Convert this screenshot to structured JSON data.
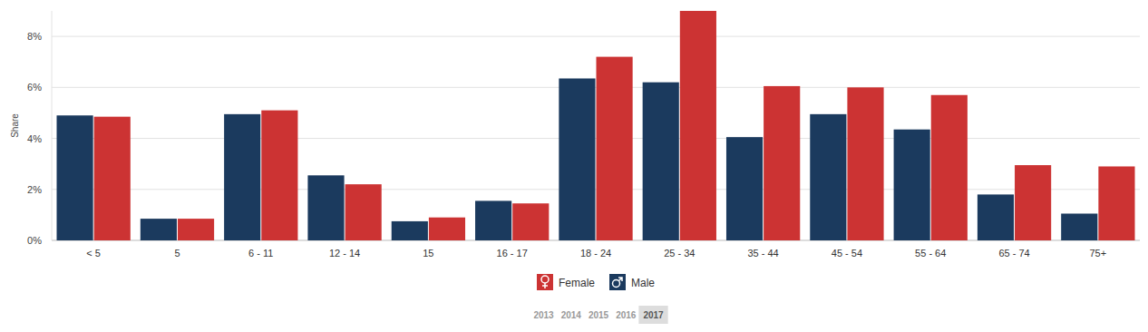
{
  "chart_data": {
    "type": "bar",
    "y_label": "Share",
    "categories": [
      "< 5",
      "5",
      "6 - 11",
      "12 - 14",
      "15",
      "16 - 17",
      "18 - 24",
      "25 - 34",
      "35 - 44",
      "45 - 54",
      "55 - 64",
      "65 - 74",
      "75+"
    ],
    "series": [
      {
        "name": "Male",
        "color": "#1b3a5e",
        "values": [
          4.9,
          0.85,
          4.95,
          2.55,
          0.75,
          1.55,
          6.35,
          6.2,
          4.05,
          4.95,
          4.35,
          1.8,
          1.05
        ]
      },
      {
        "name": "Female",
        "color": "#cc3333",
        "values": [
          4.85,
          0.85,
          5.1,
          2.2,
          0.9,
          1.45,
          7.2,
          9.0,
          6.05,
          6.0,
          5.7,
          2.95,
          2.9
        ]
      }
    ],
    "ylim": [
      0,
      9
    ],
    "yticks": [
      {
        "value": 0,
        "label": "0%"
      },
      {
        "value": 2,
        "label": "2%"
      },
      {
        "value": 4,
        "label": "4%"
      },
      {
        "value": 6,
        "label": "6%"
      },
      {
        "value": 8,
        "label": "8%"
      }
    ],
    "grid": true,
    "legend": "bottom",
    "years": [
      "2013",
      "2014",
      "2015",
      "2016",
      "2017"
    ],
    "selected_year": "2017"
  }
}
